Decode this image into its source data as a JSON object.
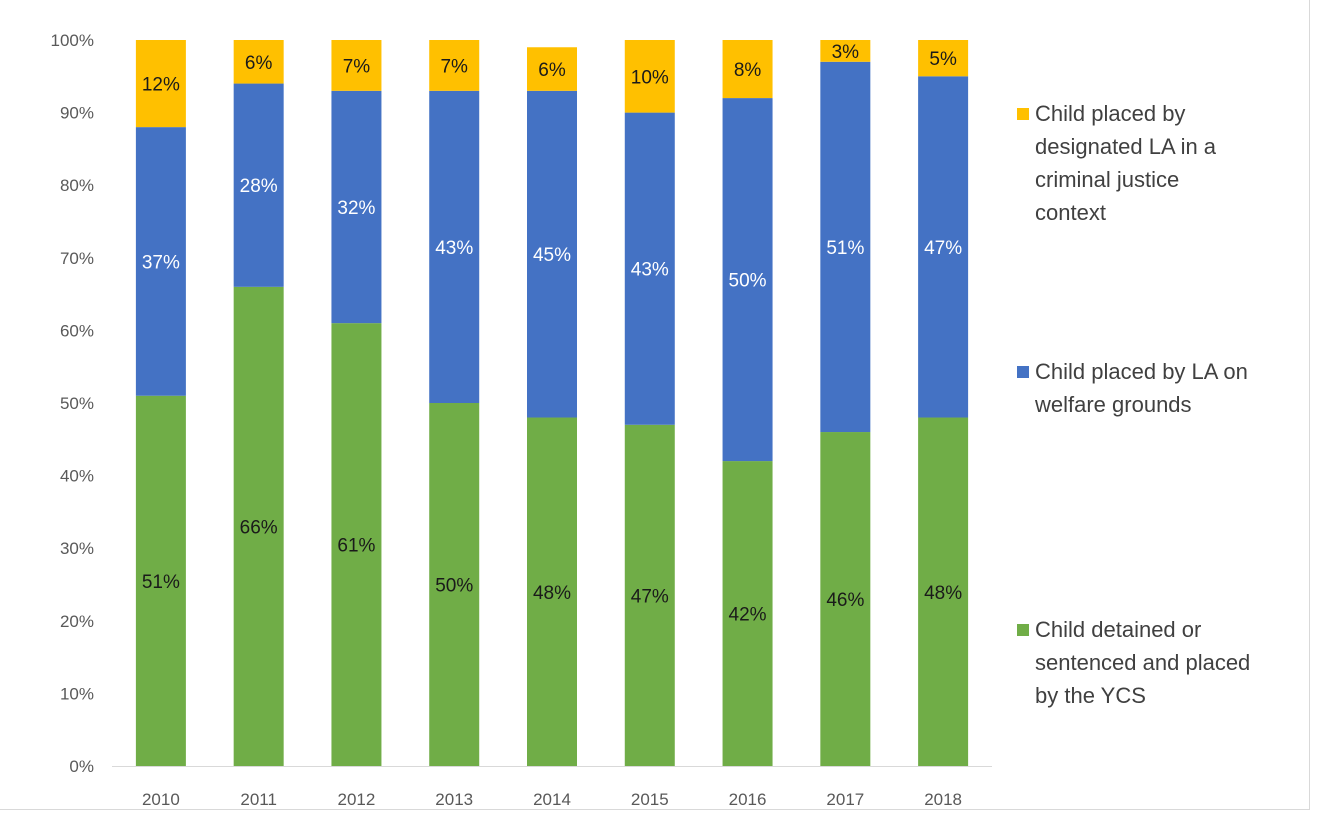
{
  "chart_data": {
    "type": "bar",
    "stacked": true,
    "categories": [
      "2010",
      "2011",
      "2012",
      "2013",
      "2014",
      "2015",
      "2016",
      "2017",
      "2018"
    ],
    "ylim": [
      0,
      100
    ],
    "y_ticks": [
      "0%",
      "10%",
      "20%",
      "30%",
      "40%",
      "50%",
      "60%",
      "70%",
      "80%",
      "90%",
      "100%"
    ],
    "grid": false,
    "legend_position": "right",
    "series": [
      {
        "name": "Child detained or sentenced and placed by the YCS",
        "legend_lines": [
          "Child detained or",
          "sentenced and placed",
          "by the YCS"
        ],
        "color": "#70ad47",
        "label_color": "#1a1a1a",
        "values": [
          51,
          66,
          61,
          50,
          48,
          47,
          42,
          46,
          48
        ],
        "labels": [
          "51%",
          "66%",
          "61%",
          "50%",
          "48%",
          "47%",
          "42%",
          "46%",
          "48%"
        ]
      },
      {
        "name": "Child placed by LA on welfare grounds",
        "legend_lines": [
          "Child placed by LA on",
          "welfare grounds"
        ],
        "color": "#4472c4",
        "label_color": "#ffffff",
        "values": [
          37,
          28,
          32,
          43,
          45,
          43,
          50,
          51,
          47
        ],
        "labels": [
          "37%",
          "28%",
          "32%",
          "43%",
          "45%",
          "43%",
          "50%",
          "51%",
          "47%"
        ]
      },
      {
        "name": "Child placed by designated LA in a criminal justice context",
        "legend_lines": [
          "Child placed by",
          "designated LA in a",
          "criminal justice",
          "context"
        ],
        "color": "#ffc000",
        "label_color": "#1a1a1a",
        "values": [
          12,
          6,
          7,
          7,
          6,
          10,
          8,
          3,
          5
        ],
        "labels": [
          "12%",
          "6%",
          "7%",
          "7%",
          "6%",
          "10%",
          "8%",
          "3%",
          "5%"
        ]
      }
    ]
  }
}
